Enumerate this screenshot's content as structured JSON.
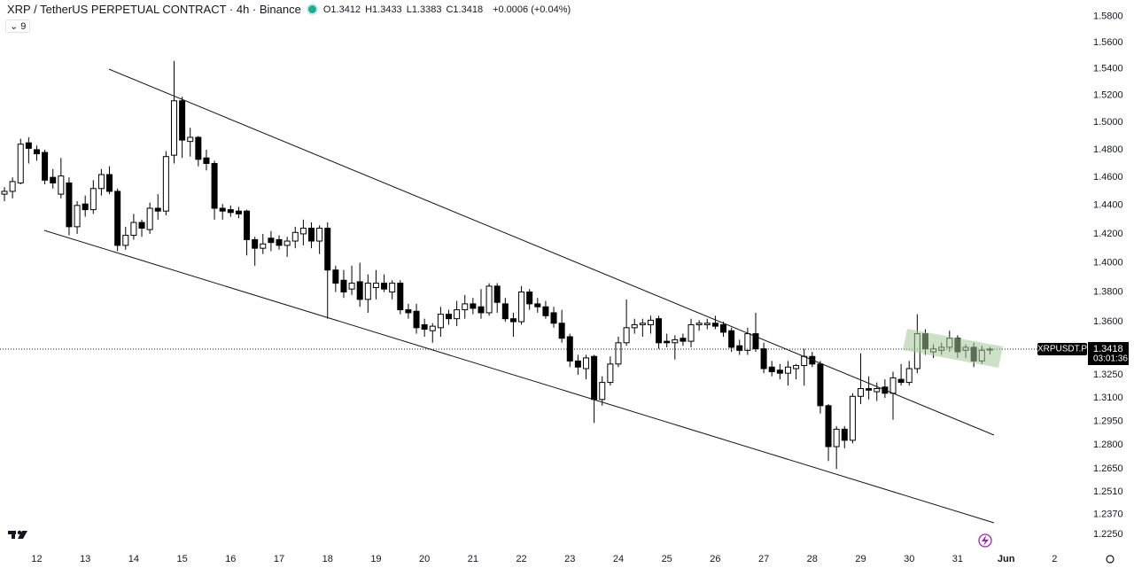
{
  "chart_data": {
    "type": "candlestick",
    "header": {
      "symbol": "XRP / TetherUS PERPETUAL CONTRACT · 4h · Binance",
      "ohlc_labels": [
        "O",
        "H",
        "L",
        "C"
      ],
      "ohlc_values": [
        "1.3412",
        "1.3433",
        "1.3383",
        "1.3418"
      ],
      "change": "+0.0006 (+0.04%)",
      "indicator_count": "9"
    },
    "log_scale": true,
    "up_color": "#ffffff",
    "down_color": "#000000",
    "outline_color": "#000000",
    "ylim": [
      1.216,
      1.593
    ],
    "yticks": [
      {
        "value": 1.58,
        "label": "1.5800"
      },
      {
        "value": 1.56,
        "label": "1.5600"
      },
      {
        "value": 1.54,
        "label": "1.5400"
      },
      {
        "value": 1.52,
        "label": "1.5200"
      },
      {
        "value": 1.5,
        "label": "1.5000"
      },
      {
        "value": 1.48,
        "label": "1.4800"
      },
      {
        "value": 1.46,
        "label": "1.4600"
      },
      {
        "value": 1.44,
        "label": "1.4400"
      },
      {
        "value": 1.42,
        "label": "1.4200"
      },
      {
        "value": 1.4,
        "label": "1.4000"
      },
      {
        "value": 1.38,
        "label": "1.3800"
      },
      {
        "value": 1.36,
        "label": "1.3600"
      },
      {
        "value": 1.325,
        "label": "1.3250"
      },
      {
        "value": 1.31,
        "label": "1.3100"
      },
      {
        "value": 1.295,
        "label": "1.2950"
      },
      {
        "value": 1.28,
        "label": "1.2800"
      },
      {
        "value": 1.265,
        "label": "1.2650"
      },
      {
        "value": 1.251,
        "label": "1.2510"
      },
      {
        "value": 1.237,
        "label": "1.2370"
      },
      {
        "value": 1.225,
        "label": "1.2250"
      }
    ],
    "xlim": [
      -0.55,
      133.8
    ],
    "xticks": [
      {
        "value": 4,
        "label": "12"
      },
      {
        "value": 10,
        "label": "13"
      },
      {
        "value": 16,
        "label": "14"
      },
      {
        "value": 22,
        "label": "15"
      },
      {
        "value": 28,
        "label": "16"
      },
      {
        "value": 34,
        "label": "17"
      },
      {
        "value": 40,
        "label": "18"
      },
      {
        "value": 46,
        "label": "19"
      },
      {
        "value": 52,
        "label": "20"
      },
      {
        "value": 58,
        "label": "21"
      },
      {
        "value": 64,
        "label": "22"
      },
      {
        "value": 70,
        "label": "23"
      },
      {
        "value": 76,
        "label": "24"
      },
      {
        "value": 82,
        "label": "25"
      },
      {
        "value": 88,
        "label": "26"
      },
      {
        "value": 94,
        "label": "27"
      },
      {
        "value": 100,
        "label": "28"
      },
      {
        "value": 106,
        "label": "29"
      },
      {
        "value": 112,
        "label": "30"
      },
      {
        "value": 118,
        "label": "31"
      },
      {
        "value": 124,
        "label": "Jun"
      },
      {
        "value": 130,
        "label": "2"
      }
    ],
    "last_price": {
      "name": "XRPUSDT.P",
      "value": 1.3418,
      "countdown": "03:01:36"
    },
    "ohlc": [
      [
        1.448,
        1.453,
        1.443,
        1.45
      ],
      [
        1.45,
        1.46,
        1.445,
        1.457
      ],
      [
        1.456,
        1.488,
        1.455,
        1.484
      ],
      [
        1.485,
        1.489,
        1.47,
        1.481
      ],
      [
        1.48,
        1.483,
        1.472,
        1.477
      ],
      [
        1.478,
        1.48,
        1.455,
        1.458
      ],
      [
        1.46,
        1.466,
        1.452,
        1.456
      ],
      [
        1.448,
        1.474,
        1.445,
        1.461
      ],
      [
        1.456,
        1.46,
        1.419,
        1.425
      ],
      [
        1.425,
        1.443,
        1.42,
        1.44
      ],
      [
        1.441,
        1.447,
        1.432,
        1.437
      ],
      [
        1.437,
        1.458,
        1.434,
        1.452
      ],
      [
        1.452,
        1.466,
        1.447,
        1.462
      ],
      [
        1.462,
        1.468,
        1.448,
        1.45
      ],
      [
        1.45,
        1.452,
        1.408,
        1.412
      ],
      [
        1.412,
        1.425,
        1.409,
        1.419
      ],
      [
        1.419,
        1.434,
        1.416,
        1.428
      ],
      [
        1.428,
        1.43,
        1.418,
        1.424
      ],
      [
        1.423,
        1.442,
        1.42,
        1.438
      ],
      [
        1.438,
        1.448,
        1.43,
        1.436
      ],
      [
        1.436,
        1.479,
        1.433,
        1.475
      ],
      [
        1.476,
        1.546,
        1.47,
        1.516
      ],
      [
        1.516,
        1.519,
        1.474,
        1.487
      ],
      [
        1.486,
        1.496,
        1.475,
        1.489
      ],
      [
        1.489,
        1.49,
        1.468,
        1.473
      ],
      [
        1.474,
        1.48,
        1.465,
        1.47
      ],
      [
        1.47,
        1.472,
        1.43,
        1.438
      ],
      [
        1.438,
        1.441,
        1.43,
        1.436
      ],
      [
        1.437,
        1.44,
        1.432,
        1.435
      ],
      [
        1.436,
        1.439,
        1.431,
        1.434
      ],
      [
        1.436,
        1.437,
        1.405,
        1.416
      ],
      [
        1.416,
        1.418,
        1.398,
        1.41
      ],
      [
        1.41,
        1.42,
        1.406,
        1.413
      ],
      [
        1.417,
        1.422,
        1.408,
        1.414
      ],
      [
        1.416,
        1.419,
        1.409,
        1.412
      ],
      [
        1.412,
        1.418,
        1.404,
        1.415
      ],
      [
        1.415,
        1.425,
        1.41,
        1.421
      ],
      [
        1.42,
        1.43,
        1.412,
        1.424
      ],
      [
        1.424,
        1.428,
        1.41,
        1.415
      ],
      [
        1.415,
        1.426,
        1.406,
        1.424
      ],
      [
        1.424,
        1.428,
        1.362,
        1.395
      ],
      [
        1.395,
        1.398,
        1.38,
        1.386
      ],
      [
        1.388,
        1.395,
        1.376,
        1.38
      ],
      [
        1.382,
        1.398,
        1.378,
        1.386
      ],
      [
        1.387,
        1.4,
        1.37,
        1.375
      ],
      [
        1.375,
        1.392,
        1.366,
        1.386
      ],
      [
        1.383,
        1.395,
        1.375,
        1.386
      ],
      [
        1.386,
        1.392,
        1.38,
        1.382
      ],
      [
        1.38,
        1.388,
        1.375,
        1.386
      ],
      [
        1.386,
        1.388,
        1.365,
        1.368
      ],
      [
        1.368,
        1.372,
        1.362,
        1.366
      ],
      [
        1.367,
        1.372,
        1.352,
        1.356
      ],
      [
        1.358,
        1.362,
        1.35,
        1.355
      ],
      [
        1.354,
        1.359,
        1.346,
        1.357
      ],
      [
        1.356,
        1.37,
        1.35,
        1.365
      ],
      [
        1.365,
        1.368,
        1.358,
        1.362
      ],
      [
        1.362,
        1.374,
        1.357,
        1.368
      ],
      [
        1.368,
        1.378,
        1.362,
        1.372
      ],
      [
        1.372,
        1.376,
        1.365,
        1.369
      ],
      [
        1.37,
        1.382,
        1.362,
        1.366
      ],
      [
        1.366,
        1.386,
        1.364,
        1.384
      ],
      [
        1.384,
        1.386,
        1.366,
        1.373
      ],
      [
        1.372,
        1.376,
        1.36,
        1.362
      ],
      [
        1.362,
        1.366,
        1.35,
        1.36
      ],
      [
        1.36,
        1.384,
        1.358,
        1.38
      ],
      [
        1.38,
        1.382,
        1.368,
        1.372
      ],
      [
        1.372,
        1.376,
        1.366,
        1.37
      ],
      [
        1.37,
        1.374,
        1.362,
        1.364
      ],
      [
        1.366,
        1.37,
        1.356,
        1.359
      ],
      [
        1.359,
        1.368,
        1.346,
        1.349
      ],
      [
        1.35,
        1.352,
        1.33,
        1.334
      ],
      [
        1.334,
        1.338,
        1.325,
        1.33
      ],
      [
        1.329,
        1.338,
        1.322,
        1.336
      ],
      [
        1.337,
        1.338,
        1.294,
        1.309
      ],
      [
        1.309,
        1.324,
        1.305,
        1.32
      ],
      [
        1.32,
        1.337,
        1.318,
        1.332
      ],
      [
        1.332,
        1.35,
        1.33,
        1.346
      ],
      [
        1.346,
        1.375,
        1.344,
        1.356
      ],
      [
        1.356,
        1.362,
        1.352,
        1.358
      ],
      [
        1.358,
        1.362,
        1.35,
        1.359
      ],
      [
        1.358,
        1.364,
        1.352,
        1.361
      ],
      [
        1.362,
        1.364,
        1.342,
        1.346
      ],
      [
        1.347,
        1.352,
        1.343,
        1.346
      ],
      [
        1.346,
        1.351,
        1.335,
        1.348
      ],
      [
        1.349,
        1.352,
        1.344,
        1.347
      ],
      [
        1.347,
        1.362,
        1.343,
        1.358
      ],
      [
        1.358,
        1.361,
        1.354,
        1.359
      ],
      [
        1.358,
        1.362,
        1.355,
        1.359
      ],
      [
        1.359,
        1.364,
        1.355,
        1.357
      ],
      [
        1.358,
        1.36,
        1.35,
        1.353
      ],
      [
        1.354,
        1.356,
        1.34,
        1.343
      ],
      [
        1.344,
        1.348,
        1.338,
        1.341
      ],
      [
        1.341,
        1.356,
        1.338,
        1.352
      ],
      [
        1.352,
        1.366,
        1.34,
        1.342
      ],
      [
        1.342,
        1.346,
        1.326,
        1.329
      ],
      [
        1.33,
        1.334,
        1.324,
        1.327
      ],
      [
        1.328,
        1.332,
        1.322,
        1.326
      ],
      [
        1.326,
        1.334,
        1.318,
        1.33
      ],
      [
        1.329,
        1.332,
        1.322,
        1.331
      ],
      [
        1.331,
        1.342,
        1.318,
        1.337
      ],
      [
        1.337,
        1.34,
        1.33,
        1.332
      ],
      [
        1.332,
        1.334,
        1.3,
        1.305
      ],
      [
        1.305,
        1.306,
        1.27,
        1.279
      ],
      [
        1.279,
        1.292,
        1.265,
        1.29
      ],
      [
        1.29,
        1.292,
        1.278,
        1.283
      ],
      [
        1.283,
        1.313,
        1.281,
        1.311
      ],
      [
        1.311,
        1.339,
        1.306,
        1.316
      ],
      [
        1.316,
        1.324,
        1.309,
        1.315
      ],
      [
        1.314,
        1.32,
        1.308,
        1.316
      ],
      [
        1.317,
        1.322,
        1.31,
        1.313
      ],
      [
        1.313,
        1.327,
        1.296,
        1.323
      ],
      [
        1.322,
        1.332,
        1.318,
        1.32
      ],
      [
        1.32,
        1.334,
        1.318,
        1.329
      ],
      [
        1.329,
        1.365,
        1.326,
        1.352
      ],
      [
        1.352,
        1.355,
        1.338,
        1.342
      ],
      [
        1.34,
        1.345,
        1.336,
        1.342
      ],
      [
        1.341,
        1.346,
        1.338,
        1.343
      ],
      [
        1.343,
        1.354,
        1.34,
        1.349
      ],
      [
        1.349,
        1.351,
        1.336,
        1.34
      ],
      [
        1.341,
        1.345,
        1.336,
        1.343
      ],
      [
        1.343,
        1.346,
        1.33,
        1.334
      ],
      [
        1.334,
        1.344,
        1.332,
        1.341
      ],
      [
        1.3412,
        1.3433,
        1.3383,
        1.3418
      ]
    ]
  }
}
